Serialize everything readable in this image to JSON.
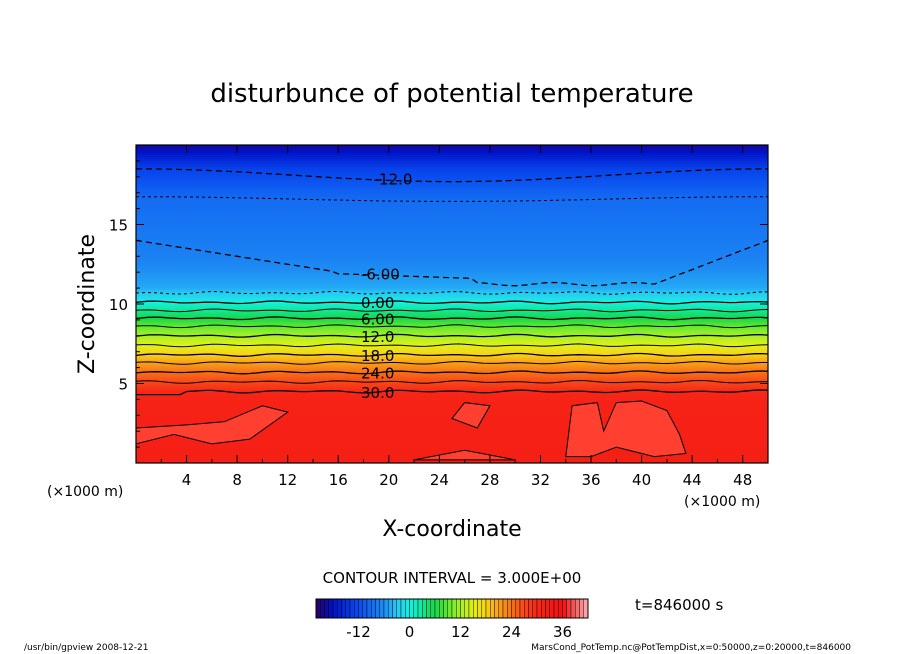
{
  "chart_data": {
    "type": "heatmap",
    "title": "disturbunce of potential temperature",
    "xlabel": "X-coordinate",
    "ylabel": "Z-coordinate",
    "x_unit": "(×1000 m)",
    "y_unit": "(×1000 m)",
    "xlim": [
      0,
      50
    ],
    "ylim": [
      0,
      20
    ],
    "x_ticks": [
      4,
      8,
      12,
      16,
      20,
      24,
      28,
      32,
      36,
      40,
      44,
      48
    ],
    "y_ticks": [
      5,
      10,
      15
    ],
    "contour_interval_text": "CONTOUR INTERVAL = 3.000E+00",
    "time_text": "t=846000 s",
    "colorbar": {
      "ticks": [
        -12,
        0,
        12,
        24,
        36
      ],
      "range": [
        -22,
        42
      ]
    },
    "contours": [
      {
        "level": -12,
        "label": "-12.0",
        "z": 18.0,
        "dashed": true,
        "label_x": 18.8
      },
      {
        "level": -9,
        "label": "",
        "z": 16.6,
        "dashed": true
      },
      {
        "level": -6,
        "label": "-6.00",
        "z": 11.8,
        "dashed": true,
        "label_x": 17.8
      },
      {
        "level": -3,
        "label": "",
        "z": 10.7,
        "dashed": true
      },
      {
        "level": 0,
        "label": "0.00",
        "z": 10.1,
        "dashed": false,
        "label_x": 17.8
      },
      {
        "level": 3,
        "label": "",
        "z": 9.6,
        "dashed": false
      },
      {
        "level": 6,
        "label": "6.00",
        "z": 9.1,
        "dashed": false,
        "label_x": 17.8
      },
      {
        "level": 9,
        "label": "",
        "z": 8.6,
        "dashed": false
      },
      {
        "level": 12,
        "label": "12.0",
        "z": 8.0,
        "dashed": false,
        "label_x": 17.8
      },
      {
        "level": 15,
        "label": "",
        "z": 7.4,
        "dashed": false
      },
      {
        "level": 18,
        "label": "18.0",
        "z": 6.8,
        "dashed": false,
        "label_x": 17.8
      },
      {
        "level": 21,
        "label": "",
        "z": 6.3,
        "dashed": false
      },
      {
        "level": 24,
        "label": "24.0",
        "z": 5.7,
        "dashed": false,
        "label_x": 17.8
      },
      {
        "level": 27,
        "label": "",
        "z": 5.1,
        "dashed": false
      },
      {
        "level": 30,
        "label": "30.0",
        "z": 4.5,
        "dashed": false,
        "label_x": 17.8
      }
    ]
  },
  "footer": {
    "left": "/usr/bin/gpview   2008-12-21",
    "right": "MarsCond_PotTemp.nc@PotTempDist,x=0:50000,z=0:20000,t=846000"
  }
}
